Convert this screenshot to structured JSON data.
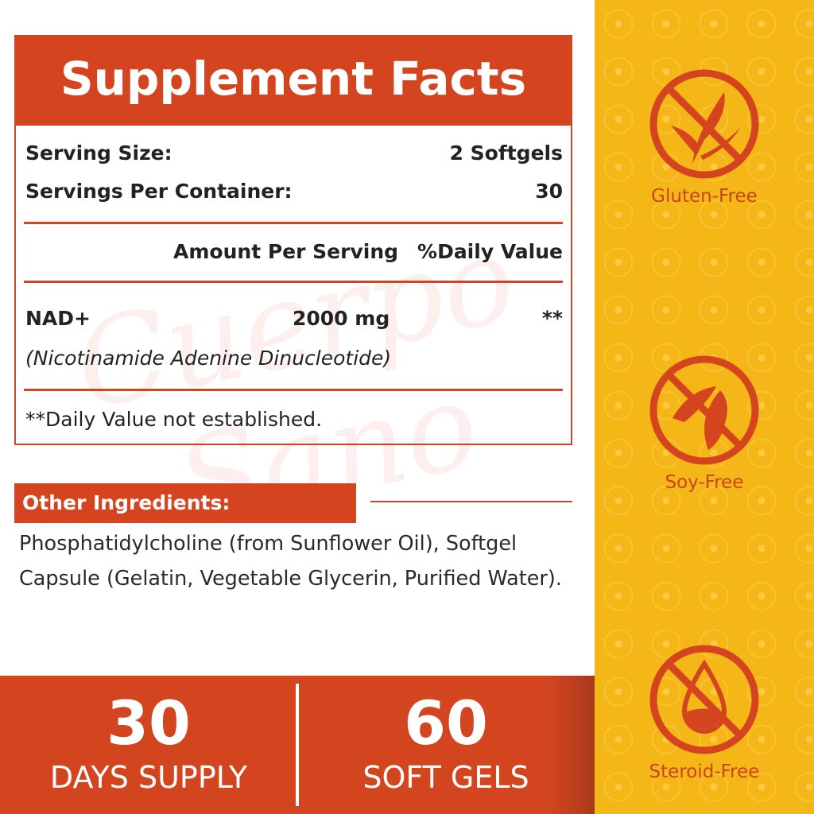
{
  "watermark": "Cuerpo Sano",
  "facts": {
    "title": "Supplement Facts",
    "serving_size_label": "Serving Size:",
    "serving_size_value": "2 Softgels",
    "servings_label": "Servings Per Container:",
    "servings_value": "30",
    "amount_header": "Amount Per Serving",
    "dv_header": "%Daily Value",
    "ingredient": {
      "name": "NAD+",
      "amount": "2000 mg",
      "dv": "**",
      "full_name": "(Nicotinamide Adenine Dinucleotide)"
    },
    "footnote": "**Daily Value not established."
  },
  "other_ingredients": {
    "title": "Other Ingredients:",
    "text": "Phosphatidylcholine (from Sunflower Oil), Softgel Capsule (Gelatin, Vegetable Glycerin, Purified Water)."
  },
  "stats": [
    {
      "number": "30",
      "label": "DAYS SUPPLY"
    },
    {
      "number": "60",
      "label": "SOFT GELS"
    }
  ],
  "badges": [
    {
      "icon": "wheat-crossed-icon",
      "label": "Gluten-Free"
    },
    {
      "icon": "soybean-crossed-icon",
      "label": "Soy-Free"
    },
    {
      "icon": "droplet-crossed-icon",
      "label": "Steroid-Free"
    }
  ],
  "colors": {
    "accent": "#d4451f",
    "panel": "#f5b617",
    "badge_text": "#c9451e"
  }
}
